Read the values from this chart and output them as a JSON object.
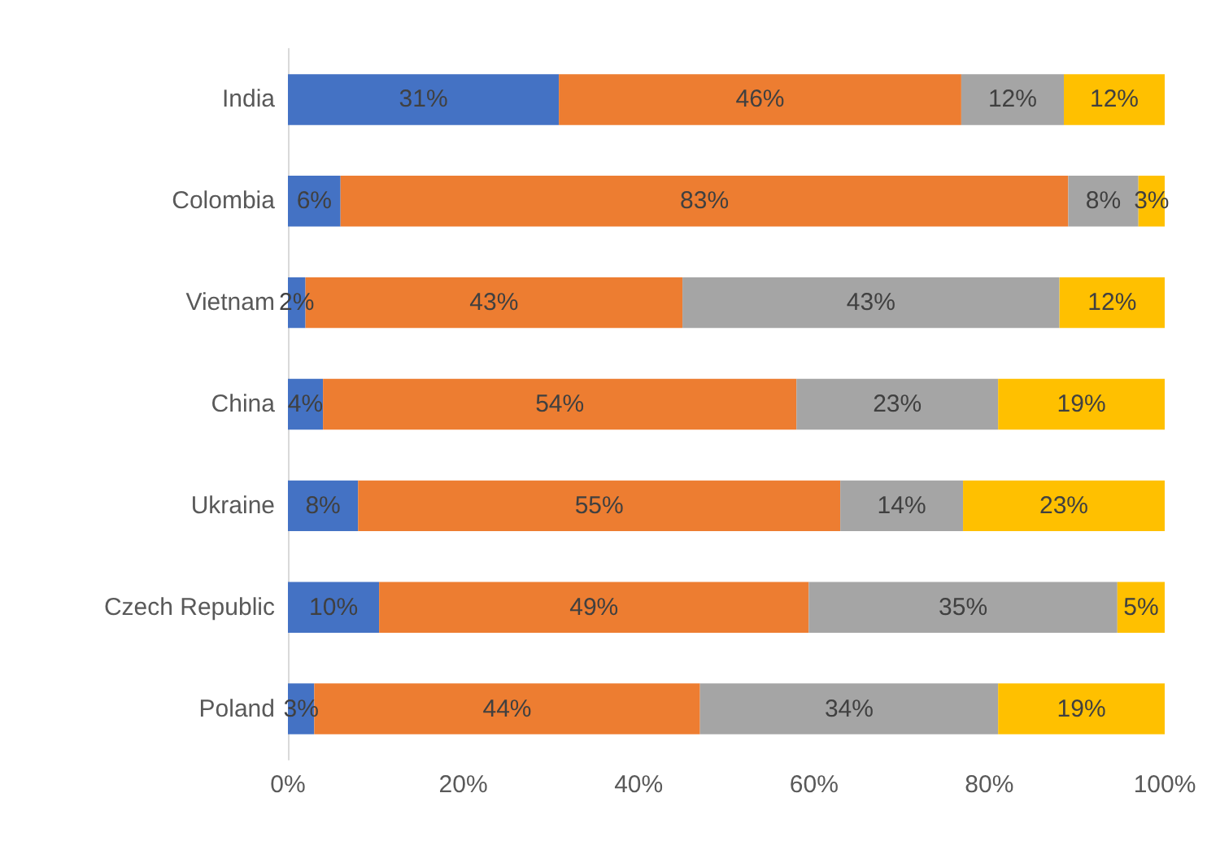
{
  "chart_data": {
    "type": "bar",
    "orientation": "horizontal",
    "stacked": true,
    "categories": [
      "India",
      "Colombia",
      "Vietnam",
      "China",
      "Ukraine",
      "Czech Republic",
      "Poland"
    ],
    "series": [
      {
        "color": "#4472c4",
        "values": [
          30.9,
          6,
          2,
          4,
          8,
          10.4,
          3
        ],
        "value_labels": [
          "31%",
          "6%",
          "2%",
          "4%",
          "8%",
          "10%",
          "3%"
        ]
      },
      {
        "color": "#ed7d31",
        "values": [
          45.9,
          83,
          43,
          54,
          55,
          49,
          44
        ],
        "value_labels": [
          "46%",
          "83%",
          "43%",
          "54%",
          "55%",
          "49%",
          "44%"
        ]
      },
      {
        "color": "#a5a5a5",
        "values": [
          11.7,
          8,
          43,
          23,
          14,
          35.2,
          34
        ],
        "value_labels": [
          "12%",
          "8%",
          "43%",
          "23%",
          "14%",
          "35%",
          "34%"
        ]
      },
      {
        "color": "#ffc000",
        "values": [
          11.5,
          3,
          12,
          19,
          23,
          5.4,
          19
        ],
        "value_labels": [
          "12%",
          "3%",
          "12%",
          "19%",
          "23%",
          "5%",
          "19%"
        ]
      }
    ],
    "xlim": [
      0,
      100
    ],
    "xticks": [
      {
        "value": 0,
        "label": "0%"
      },
      {
        "value": 20,
        "label": "20%"
      },
      {
        "value": 40,
        "label": "40%"
      },
      {
        "value": 60,
        "label": "60%"
      },
      {
        "value": 80,
        "label": "80%"
      },
      {
        "value": 100,
        "label": "100%"
      }
    ],
    "grid": false
  }
}
